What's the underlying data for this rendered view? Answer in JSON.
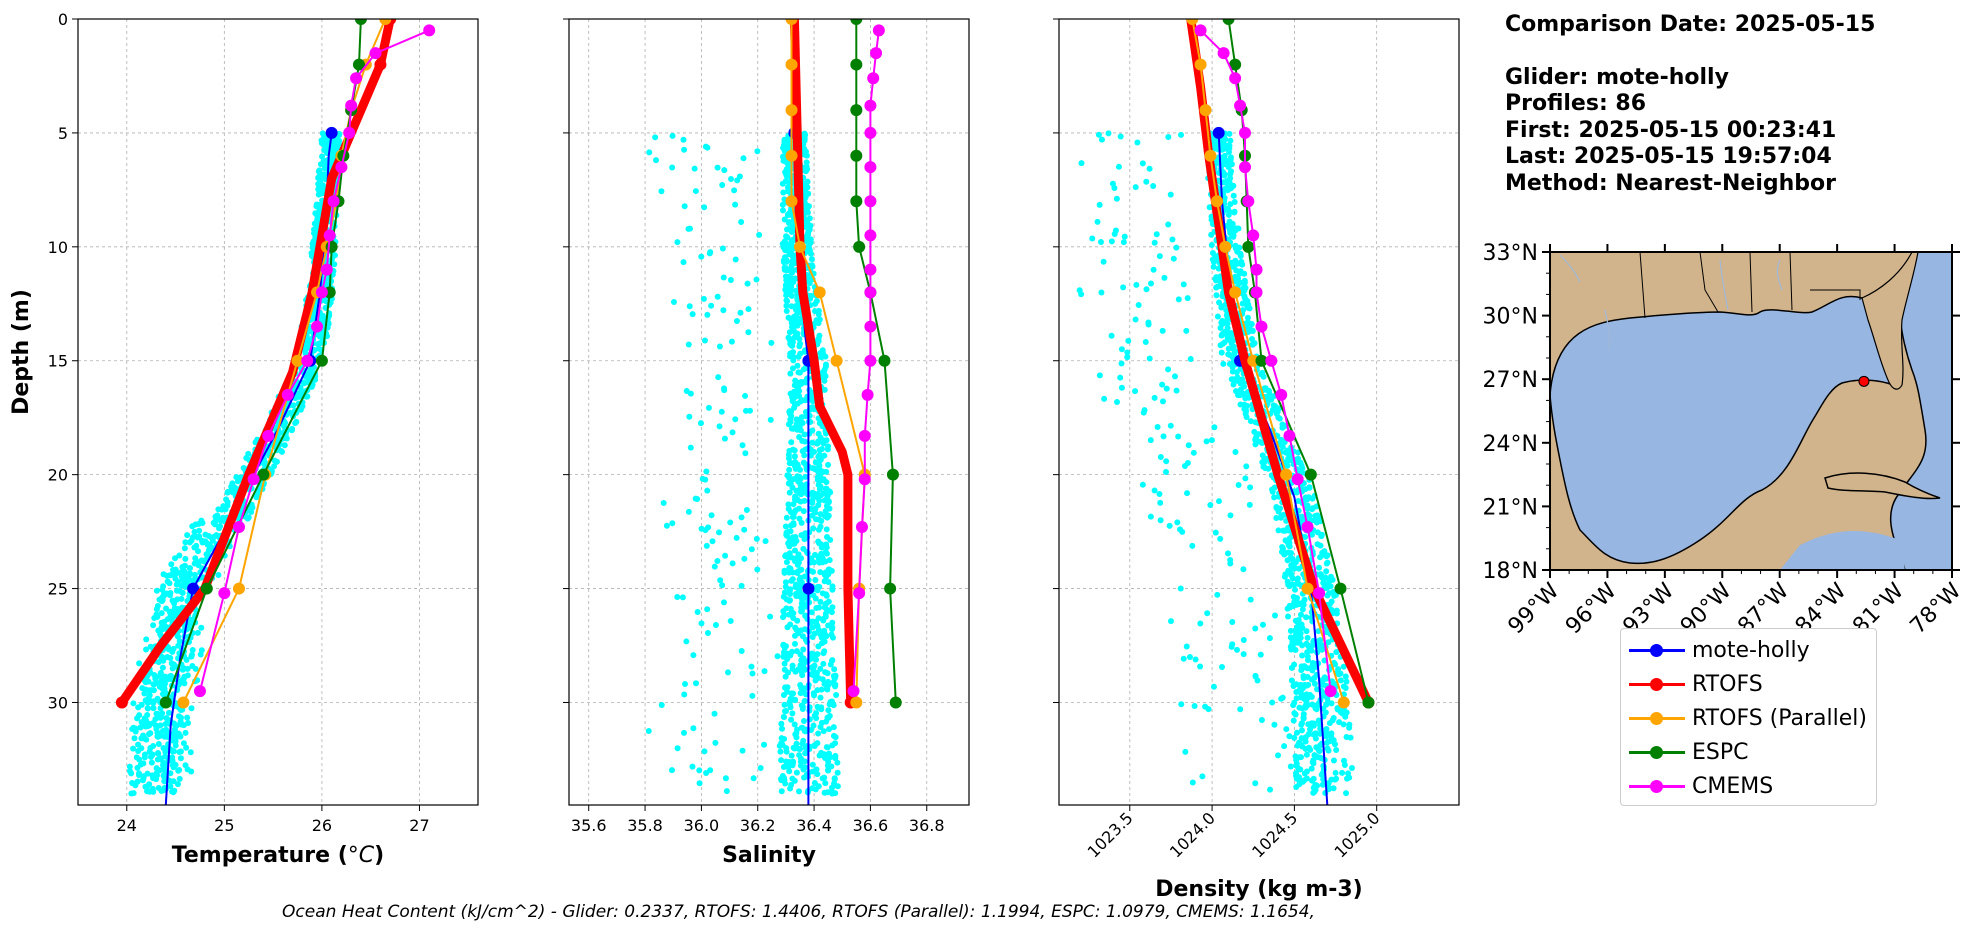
{
  "info": {
    "comparison_date": "Comparison Date: 2025-05-15",
    "glider": "Glider: mote-holly",
    "profiles": "Profiles: 86",
    "first": "First: 2025-05-15 00:23:41",
    "last": "Last: 2025-05-15 19:57:04",
    "method": "Method: Nearest-Neighbor"
  },
  "footer": "Ocean Heat Content (kJ/cm^2) - Glider: 0.2337,  RTOFS: 1.4406,  RTOFS (Parallel): 1.1994,  ESPC: 1.0979,  CMEMS: 1.1654,",
  "legend": [
    {
      "name": "mote-holly",
      "color": "#0000ff"
    },
    {
      "name": "RTOFS",
      "color": "#ff0000"
    },
    {
      "name": "RTOFS (Parallel)",
      "color": "#ffa500"
    },
    {
      "name": "ESPC",
      "color": "#008000"
    },
    {
      "name": "CMEMS",
      "color": "#ff00ff"
    }
  ],
  "map": {
    "lat_ticks": [
      "18°N",
      "21°N",
      "24°N",
      "27°N",
      "30°N",
      "33°N"
    ],
    "lon_ticks": [
      "99°W",
      "96°W",
      "93°W",
      "90°W",
      "87°W",
      "84°W",
      "81°W",
      "78°W"
    ],
    "xlim": [
      -99,
      -78
    ],
    "ylim": [
      18,
      33
    ],
    "glider_location": {
      "lon": -82.6,
      "lat": 26.9
    },
    "land_color": "#d2b48c",
    "ocean_color": "#97b6e1"
  },
  "chart_data": [
    {
      "type": "line",
      "xlabel": "Temperature (°C)",
      "ylabel": "Depth (m)",
      "xlim": [
        23.5,
        27.6
      ],
      "ylim": [
        34.5,
        0
      ],
      "xticks": [
        24,
        25,
        26,
        27
      ],
      "yticks": [
        0,
        5,
        10,
        15,
        20,
        25,
        30
      ],
      "grid": true,
      "series": [
        {
          "name": "mote-holly",
          "color": "#0000ff",
          "lw": 2,
          "markers": [
            5,
            15,
            25
          ],
          "points": [
            [
              26.1,
              5
            ],
            [
              26.07,
              6
            ],
            [
              26.05,
              8
            ],
            [
              26.02,
              10
            ],
            [
              25.98,
              12
            ],
            [
              25.88,
              15
            ],
            [
              25.55,
              18
            ],
            [
              25.3,
              20
            ],
            [
              25.0,
              22.5
            ],
            [
              24.68,
              25
            ],
            [
              24.55,
              28
            ],
            [
              24.45,
              31
            ],
            [
              24.4,
              34.5
            ]
          ]
        },
        {
          "name": "RTOFS",
          "color": "#ff0000",
          "lw": 9,
          "markers": [
            0,
            2,
            30
          ],
          "points": [
            [
              26.7,
              0
            ],
            [
              26.6,
              2
            ],
            [
              26.1,
              7
            ],
            [
              25.9,
              12
            ],
            [
              25.7,
              15.5
            ],
            [
              25.25,
              20
            ],
            [
              24.8,
              25
            ],
            [
              24.35,
              27.5
            ],
            [
              23.95,
              30
            ]
          ]
        },
        {
          "name": "RTOFS (Parallel)",
          "color": "#ffa500",
          "lw": 2,
          "markers": [
            0,
            2,
            4,
            6,
            8,
            10,
            12,
            15,
            20,
            25,
            30
          ],
          "points": [
            [
              26.65,
              0
            ],
            [
              26.45,
              2
            ],
            [
              26.3,
              4
            ],
            [
              26.2,
              6
            ],
            [
              26.15,
              8
            ],
            [
              26.05,
              10
            ],
            [
              25.95,
              12
            ],
            [
              25.75,
              15
            ],
            [
              25.42,
              20
            ],
            [
              25.15,
              25
            ],
            [
              24.58,
              30
            ]
          ]
        },
        {
          "name": "ESPC",
          "color": "#008000",
          "lw": 2,
          "markers": [
            0,
            2,
            4,
            6,
            8,
            10,
            12,
            15,
            20,
            25,
            30
          ],
          "points": [
            [
              26.4,
              0
            ],
            [
              26.38,
              2
            ],
            [
              26.3,
              4
            ],
            [
              26.22,
              6
            ],
            [
              26.17,
              8
            ],
            [
              26.1,
              10
            ],
            [
              26.08,
              12
            ],
            [
              26.0,
              15
            ],
            [
              25.4,
              20
            ],
            [
              24.82,
              25
            ],
            [
              24.4,
              30
            ]
          ]
        },
        {
          "name": "CMEMS",
          "color": "#ff00ff",
          "lw": 2,
          "markers": [
            0.5,
            1.5,
            2.6,
            3.8,
            5,
            6.5,
            8,
            9.5,
            11,
            12,
            13.5,
            15,
            16.5,
            18.3,
            20.2,
            22.3,
            25.2,
            29.5
          ],
          "points": [
            [
              27.1,
              0.5
            ],
            [
              26.55,
              1.5
            ],
            [
              26.35,
              2.6
            ],
            [
              26.3,
              3.8
            ],
            [
              26.28,
              5
            ],
            [
              26.2,
              6.5
            ],
            [
              26.12,
              8
            ],
            [
              26.08,
              9.5
            ],
            [
              26.05,
              11
            ],
            [
              26.0,
              12
            ],
            [
              25.95,
              13.5
            ],
            [
              25.85,
              15
            ],
            [
              25.65,
              16.5
            ],
            [
              25.45,
              18.3
            ],
            [
              25.3,
              20.2
            ],
            [
              25.15,
              22.3
            ],
            [
              25.0,
              25.2
            ],
            [
              24.75,
              29.5
            ]
          ]
        }
      ]
    },
    {
      "type": "line",
      "xlabel": "Salinity",
      "xlim": [
        35.53,
        36.95
      ],
      "ylim": [
        34.5,
        0
      ],
      "xticks": [
        35.6,
        35.8,
        36.0,
        36.2,
        36.4,
        36.6,
        36.8
      ],
      "yticks": [
        0,
        5,
        10,
        15,
        20,
        25,
        30
      ],
      "grid": true,
      "series": [
        {
          "name": "mote-holly",
          "color": "#0000ff",
          "lw": 2,
          "markers": [
            5,
            15,
            25
          ],
          "points": [
            [
              36.33,
              5
            ],
            [
              36.34,
              10
            ],
            [
              36.37,
              14
            ],
            [
              36.38,
              15
            ],
            [
              36.38,
              20
            ],
            [
              36.38,
              25
            ],
            [
              36.38,
              30
            ],
            [
              36.38,
              34.5
            ]
          ]
        },
        {
          "name": "RTOFS",
          "color": "#ff0000",
          "lw": 9,
          "markers": [
            30
          ],
          "points": [
            [
              36.33,
              0
            ],
            [
              36.34,
              5
            ],
            [
              36.35,
              10
            ],
            [
              36.36,
              12
            ],
            [
              36.4,
              15
            ],
            [
              36.42,
              17
            ],
            [
              36.5,
              19
            ],
            [
              36.52,
              20
            ],
            [
              36.52,
              25
            ],
            [
              36.53,
              30
            ]
          ]
        },
        {
          "name": "RTOFS (Parallel)",
          "color": "#ffa500",
          "lw": 2,
          "markers": [
            0,
            2,
            4,
            6,
            8,
            10,
            12,
            15,
            20,
            25,
            30
          ],
          "points": [
            [
              36.32,
              0
            ],
            [
              36.32,
              2
            ],
            [
              36.32,
              4
            ],
            [
              36.32,
              6
            ],
            [
              36.32,
              8
            ],
            [
              36.35,
              10
            ],
            [
              36.42,
              12
            ],
            [
              36.48,
              15
            ],
            [
              36.58,
              20
            ],
            [
              36.56,
              25
            ],
            [
              36.55,
              30
            ]
          ]
        },
        {
          "name": "ESPC",
          "color": "#008000",
          "lw": 2,
          "markers": [
            0,
            2,
            4,
            6,
            8,
            10,
            12,
            15,
            20,
            25,
            30
          ],
          "points": [
            [
              36.55,
              0
            ],
            [
              36.55,
              2
            ],
            [
              36.55,
              4
            ],
            [
              36.55,
              6
            ],
            [
              36.55,
              8
            ],
            [
              36.56,
              10
            ],
            [
              36.6,
              12
            ],
            [
              36.65,
              15
            ],
            [
              36.68,
              20
            ],
            [
              36.67,
              25
            ],
            [
              36.69,
              30
            ]
          ]
        },
        {
          "name": "CMEMS",
          "color": "#ff00ff",
          "lw": 2,
          "markers": [
            0.5,
            1.5,
            2.6,
            3.8,
            5,
            6.5,
            8,
            9.5,
            11,
            12,
            13.5,
            15,
            16.5,
            18.3,
            20.2,
            22.3,
            25.2,
            29.5
          ],
          "points": [
            [
              36.63,
              0.5
            ],
            [
              36.62,
              1.5
            ],
            [
              36.61,
              2.6
            ],
            [
              36.6,
              3.8
            ],
            [
              36.6,
              5
            ],
            [
              36.6,
              6.5
            ],
            [
              36.6,
              8
            ],
            [
              36.6,
              9.5
            ],
            [
              36.6,
              11
            ],
            [
              36.6,
              12
            ],
            [
              36.6,
              13.5
            ],
            [
              36.6,
              15
            ],
            [
              36.59,
              16.5
            ],
            [
              36.58,
              18.3
            ],
            [
              36.58,
              20.2
            ],
            [
              36.57,
              22.3
            ],
            [
              36.56,
              25.2
            ],
            [
              36.54,
              29.5
            ]
          ]
        }
      ]
    },
    {
      "type": "line",
      "xlabel": "Density (kg m-3)",
      "xlim": [
        1023.07,
        1025.5
      ],
      "ylim": [
        34.5,
        0
      ],
      "xticks": [
        1023.5,
        1024.0,
        1024.5,
        1025.0
      ],
      "yticks": [
        0,
        5,
        10,
        15,
        20,
        25,
        30
      ],
      "grid": true,
      "series": [
        {
          "name": "mote-holly",
          "color": "#0000ff",
          "lw": 2,
          "markers": [
            5,
            15,
            25
          ],
          "points": [
            [
              1024.04,
              5
            ],
            [
              1024.06,
              8
            ],
            [
              1024.1,
              11
            ],
            [
              1024.17,
              15
            ],
            [
              1024.35,
              18
            ],
            [
              1024.5,
              21
            ],
            [
              1024.6,
              25
            ],
            [
              1024.65,
              29
            ],
            [
              1024.7,
              34.5
            ]
          ]
        },
        {
          "name": "RTOFS",
          "color": "#ff0000",
          "lw": 9,
          "markers": [
            30
          ],
          "points": [
            [
              1023.87,
              0
            ],
            [
              1023.93,
              3
            ],
            [
              1023.98,
              6
            ],
            [
              1024.04,
              9
            ],
            [
              1024.1,
              12
            ],
            [
              1024.2,
              15
            ],
            [
              1024.4,
              20
            ],
            [
              1024.62,
              25
            ],
            [
              1024.95,
              30
            ]
          ]
        },
        {
          "name": "RTOFS (Parallel)",
          "color": "#ffa500",
          "lw": 2,
          "markers": [
            0,
            2,
            4,
            6,
            8,
            10,
            12,
            15,
            20,
            25,
            30
          ],
          "points": [
            [
              1023.88,
              0
            ],
            [
              1023.93,
              2
            ],
            [
              1023.96,
              4
            ],
            [
              1023.99,
              6
            ],
            [
              1024.03,
              8
            ],
            [
              1024.08,
              10
            ],
            [
              1024.14,
              12
            ],
            [
              1024.25,
              15
            ],
            [
              1024.45,
              20
            ],
            [
              1024.58,
              25
            ],
            [
              1024.8,
              30
            ]
          ]
        },
        {
          "name": "ESPC",
          "color": "#008000",
          "lw": 2,
          "markers": [
            0,
            2,
            4,
            6,
            8,
            10,
            12,
            15,
            20,
            25,
            30
          ],
          "points": [
            [
              1024.1,
              0
            ],
            [
              1024.14,
              2
            ],
            [
              1024.18,
              4
            ],
            [
              1024.2,
              6
            ],
            [
              1024.21,
              8
            ],
            [
              1024.22,
              10
            ],
            [
              1024.26,
              12
            ],
            [
              1024.3,
              15
            ],
            [
              1024.6,
              20
            ],
            [
              1024.78,
              25
            ],
            [
              1024.95,
              30
            ]
          ]
        },
        {
          "name": "CMEMS",
          "color": "#ff00ff",
          "lw": 2,
          "markers": [
            0.5,
            1.5,
            2.6,
            3.8,
            5,
            6.5,
            8,
            9.5,
            11,
            12,
            13.5,
            15,
            16.5,
            18.3,
            20.2,
            22.3,
            25.2,
            29.5
          ],
          "points": [
            [
              1023.93,
              0.5
            ],
            [
              1024.07,
              1.5
            ],
            [
              1024.14,
              2.6
            ],
            [
              1024.17,
              3.8
            ],
            [
              1024.2,
              5
            ],
            [
              1024.2,
              6.5
            ],
            [
              1024.22,
              8
            ],
            [
              1024.25,
              9.5
            ],
            [
              1024.27,
              11
            ],
            [
              1024.27,
              12
            ],
            [
              1024.3,
              13.5
            ],
            [
              1024.36,
              15
            ],
            [
              1024.42,
              16.5
            ],
            [
              1024.47,
              18.3
            ],
            [
              1024.52,
              20.2
            ],
            [
              1024.58,
              22.3
            ],
            [
              1024.65,
              25.2
            ],
            [
              1024.72,
              29.5
            ]
          ]
        }
      ]
    }
  ]
}
